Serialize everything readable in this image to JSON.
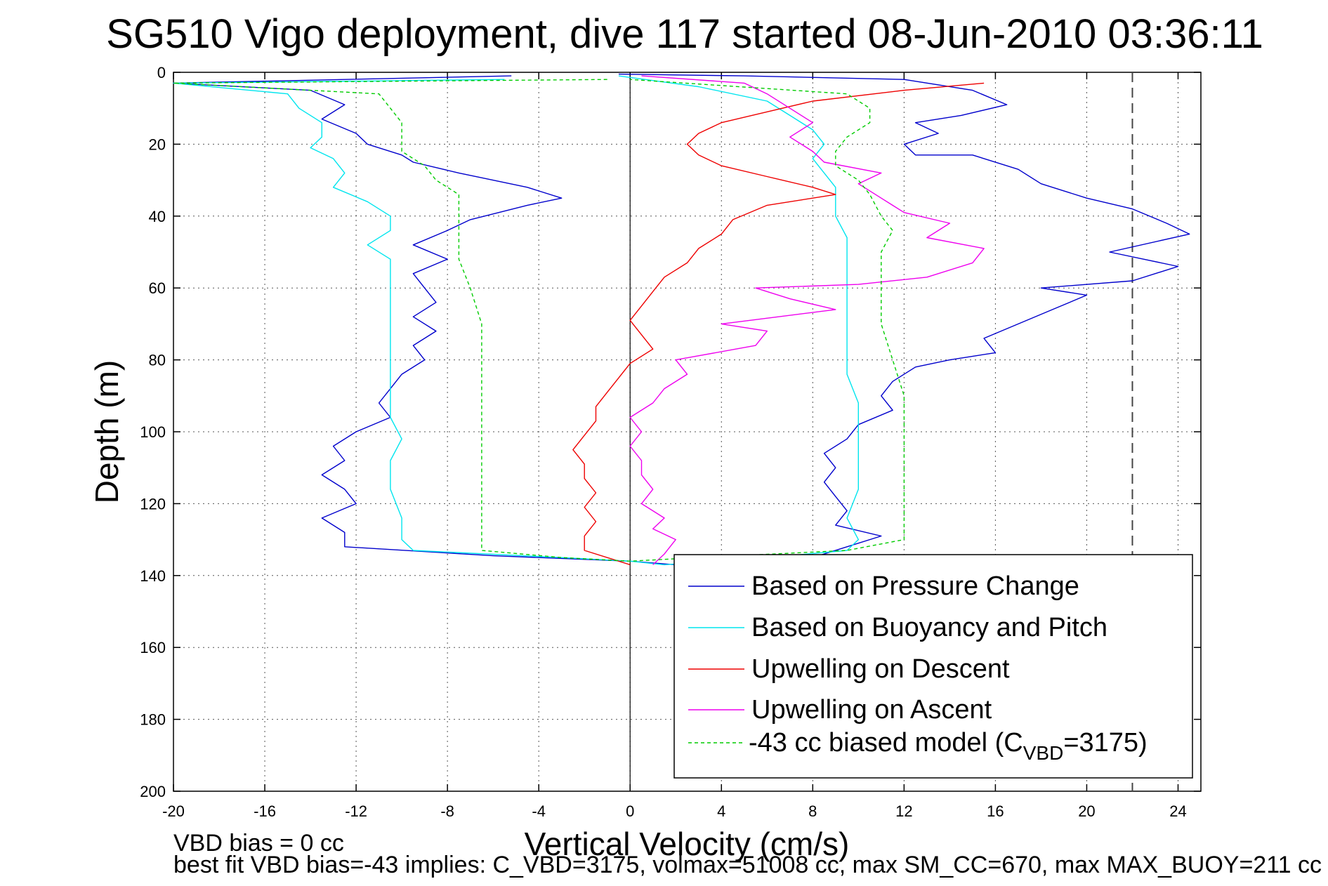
{
  "chart_data": {
    "type": "line",
    "title": "SG510 Vigo deployment, dive 117 started 08-Jun-2010 03:36:11",
    "xlabel": "Vertical Velocity (cm/s)",
    "ylabel": "Depth (m)",
    "xlim": [
      -20,
      25
    ],
    "ylim": [
      0,
      200
    ],
    "y_reversed": true,
    "grid": true,
    "legend_position": "bottom-right",
    "x_ticks": [
      "-20",
      "-16",
      "-12",
      "-8",
      "-4",
      "0",
      "4",
      "8",
      "12",
      "16",
      "20",
      "24"
    ],
    "y_ticks": [
      "0",
      "20",
      "40",
      "60",
      "80",
      "100",
      "120",
      "140",
      "160",
      "180",
      "200"
    ],
    "reference_line_x": 22,
    "series": [
      {
        "name": "Based on Pressure Change",
        "color": "#0000cc",
        "dash": "solid",
        "points": [
          [
            -5.2,
            1
          ],
          [
            -20,
            3
          ],
          [
            -14,
            5
          ],
          [
            -12.5,
            9
          ],
          [
            -13.5,
            13
          ],
          [
            -12,
            17
          ],
          [
            -11.5,
            20
          ],
          [
            -10,
            23
          ],
          [
            -9.5,
            25
          ],
          [
            -7.5,
            28
          ],
          [
            -4.5,
            32
          ],
          [
            -3,
            35
          ],
          [
            -4.5,
            37
          ],
          [
            -7,
            41
          ],
          [
            -8,
            44
          ],
          [
            -9.5,
            48
          ],
          [
            -8,
            52
          ],
          [
            -9.5,
            56
          ],
          [
            -9,
            60
          ],
          [
            -8.5,
            64
          ],
          [
            -9.5,
            68
          ],
          [
            -8.5,
            72
          ],
          [
            -9.5,
            76
          ],
          [
            -9,
            80
          ],
          [
            -10,
            84
          ],
          [
            -10.5,
            88
          ],
          [
            -11,
            92
          ],
          [
            -10.5,
            96
          ],
          [
            -12,
            100
          ],
          [
            -13,
            104
          ],
          [
            -12.5,
            108
          ],
          [
            -13.5,
            112
          ],
          [
            -12.5,
            116
          ],
          [
            -12,
            120
          ],
          [
            -13.5,
            124
          ],
          [
            -12.5,
            128
          ],
          [
            -12.5,
            132
          ],
          [
            -6,
            134.5
          ],
          [
            0,
            136
          ],
          [
            2,
            137
          ],
          [
            8,
            135
          ],
          [
            9.5,
            132
          ],
          [
            11,
            129
          ],
          [
            9,
            126
          ],
          [
            9.5,
            122
          ],
          [
            9,
            118
          ],
          [
            8.5,
            114
          ],
          [
            9,
            110
          ],
          [
            8.5,
            106
          ],
          [
            9.5,
            102
          ],
          [
            10,
            98
          ],
          [
            11.5,
            94
          ],
          [
            11,
            90
          ],
          [
            11.5,
            86
          ],
          [
            12.5,
            82
          ],
          [
            14,
            80
          ],
          [
            16,
            78
          ],
          [
            15.5,
            74
          ],
          [
            17,
            70
          ],
          [
            18.5,
            66
          ],
          [
            20,
            62
          ],
          [
            18,
            60
          ],
          [
            22,
            58
          ],
          [
            24,
            54
          ],
          [
            21,
            50
          ],
          [
            24.5,
            45
          ],
          [
            23.5,
            42
          ],
          [
            22,
            38
          ],
          [
            20,
            35
          ],
          [
            18,
            31
          ],
          [
            17,
            27
          ],
          [
            15,
            23
          ],
          [
            12.5,
            23
          ],
          [
            12,
            20
          ],
          [
            13.5,
            17
          ],
          [
            12.5,
            14
          ],
          [
            14.5,
            12
          ],
          [
            16.5,
            9
          ],
          [
            15,
            5
          ],
          [
            12,
            2
          ],
          [
            5,
            1
          ],
          [
            -0.5,
            0.5
          ]
        ]
      },
      {
        "name": "Based on Buoyancy and Pitch",
        "color": "#00e5ee",
        "dash": "solid",
        "points": [
          [
            -5.5,
            2
          ],
          [
            -20,
            3
          ],
          [
            -15,
            6
          ],
          [
            -14.5,
            10
          ],
          [
            -13.5,
            14
          ],
          [
            -13.5,
            18
          ],
          [
            -14,
            21
          ],
          [
            -13,
            24
          ],
          [
            -12.5,
            28
          ],
          [
            -13,
            32
          ],
          [
            -11.5,
            36
          ],
          [
            -10.5,
            40
          ],
          [
            -10.5,
            44
          ],
          [
            -11.5,
            48
          ],
          [
            -10.5,
            52
          ],
          [
            -10.5,
            56
          ],
          [
            -10.5,
            60
          ],
          [
            -10.5,
            66
          ],
          [
            -10.5,
            72
          ],
          [
            -10.5,
            78
          ],
          [
            -10.5,
            84
          ],
          [
            -10.5,
            90
          ],
          [
            -10.5,
            96
          ],
          [
            -10,
            102
          ],
          [
            -10.5,
            108
          ],
          [
            -10.5,
            116
          ],
          [
            -10,
            124
          ],
          [
            -10,
            130
          ],
          [
            -9.5,
            133
          ],
          [
            -3,
            135
          ],
          [
            0,
            136
          ],
          [
            1.5,
            137
          ],
          [
            6,
            135
          ],
          [
            9.5,
            133
          ],
          [
            10,
            130
          ],
          [
            9.5,
            124
          ],
          [
            10,
            116
          ],
          [
            10,
            108
          ],
          [
            10,
            100
          ],
          [
            10,
            92
          ],
          [
            9.5,
            84
          ],
          [
            9.5,
            76
          ],
          [
            9.5,
            68
          ],
          [
            9.5,
            60
          ],
          [
            9.5,
            52
          ],
          [
            9.5,
            46
          ],
          [
            9,
            40
          ],
          [
            9,
            36
          ],
          [
            9,
            32
          ],
          [
            8.5,
            28
          ],
          [
            8,
            24
          ],
          [
            8.5,
            20
          ],
          [
            8,
            16
          ],
          [
            7,
            12
          ],
          [
            6,
            8
          ],
          [
            3,
            4
          ],
          [
            -0.5,
            1
          ]
        ]
      },
      {
        "name": "Upwelling on Descent",
        "color": "#ee0000",
        "dash": "solid",
        "points": [
          [
            15.5,
            3
          ],
          [
            12,
            5
          ],
          [
            8,
            8
          ],
          [
            6,
            11
          ],
          [
            4,
            14
          ],
          [
            3,
            17
          ],
          [
            2.5,
            20
          ],
          [
            3,
            23
          ],
          [
            4,
            26
          ],
          [
            6,
            29
          ],
          [
            8,
            32
          ],
          [
            9,
            34
          ],
          [
            6,
            37
          ],
          [
            4.5,
            41
          ],
          [
            4,
            45
          ],
          [
            3,
            49
          ],
          [
            2.5,
            53
          ],
          [
            1.5,
            57
          ],
          [
            1,
            61
          ],
          [
            0.5,
            65
          ],
          [
            0,
            69
          ],
          [
            0.5,
            73
          ],
          [
            1,
            77
          ],
          [
            0,
            81
          ],
          [
            -0.5,
            85
          ],
          [
            -1,
            89
          ],
          [
            -1.5,
            93
          ],
          [
            -1.5,
            97
          ],
          [
            -2,
            101
          ],
          [
            -2.5,
            105
          ],
          [
            -2,
            109
          ],
          [
            -2,
            113
          ],
          [
            -1.5,
            117
          ],
          [
            -2,
            121
          ],
          [
            -1.5,
            125
          ],
          [
            -2,
            129
          ],
          [
            -2,
            133
          ],
          [
            -0.5,
            136
          ],
          [
            0,
            137
          ]
        ]
      },
      {
        "name": "Upwelling on Ascent",
        "color": "#ee00ee",
        "dash": "solid",
        "points": [
          [
            1,
            137
          ],
          [
            1.5,
            134
          ],
          [
            2,
            130
          ],
          [
            1,
            127
          ],
          [
            1.5,
            124
          ],
          [
            0.5,
            120
          ],
          [
            1,
            116
          ],
          [
            0.5,
            112
          ],
          [
            0.5,
            108
          ],
          [
            0,
            104
          ],
          [
            0.5,
            100
          ],
          [
            0,
            96
          ],
          [
            1,
            92
          ],
          [
            1.5,
            88
          ],
          [
            2.5,
            84
          ],
          [
            2,
            80
          ],
          [
            5.5,
            76
          ],
          [
            6,
            72
          ],
          [
            4,
            70
          ],
          [
            6.5,
            68
          ],
          [
            9,
            66
          ],
          [
            7,
            63
          ],
          [
            5.5,
            60
          ],
          [
            10,
            59
          ],
          [
            13,
            57
          ],
          [
            15,
            53
          ],
          [
            15.5,
            49
          ],
          [
            13,
            46
          ],
          [
            14,
            42
          ],
          [
            12,
            39
          ],
          [
            11,
            35
          ],
          [
            10,
            31
          ],
          [
            11,
            28
          ],
          [
            8.5,
            25
          ],
          [
            8,
            22
          ],
          [
            7,
            18
          ],
          [
            8,
            14
          ],
          [
            7,
            10
          ],
          [
            6,
            6
          ],
          [
            5,
            3
          ],
          [
            0.5,
            1
          ]
        ]
      },
      {
        "name": "-43 cc biased model (C_VBD=3175)",
        "color": "#00cc00",
        "dash": "dashed",
        "points": [
          [
            -1,
            2
          ],
          [
            -20,
            3
          ],
          [
            -11,
            6
          ],
          [
            -10.5,
            10
          ],
          [
            -10,
            14
          ],
          [
            -10,
            18
          ],
          [
            -10,
            22
          ],
          [
            -9,
            26
          ],
          [
            -8.5,
            30
          ],
          [
            -7.5,
            34
          ],
          [
            -7.5,
            38
          ],
          [
            -7.5,
            44
          ],
          [
            -7.5,
            52
          ],
          [
            -7,
            60
          ],
          [
            -6.5,
            70
          ],
          [
            -6.5,
            80
          ],
          [
            -6.5,
            90
          ],
          [
            -6.5,
            100
          ],
          [
            -6.5,
            110
          ],
          [
            -6.5,
            120
          ],
          [
            -6.5,
            130
          ],
          [
            -6.5,
            133
          ],
          [
            -3,
            135
          ],
          [
            0,
            136
          ],
          [
            3,
            135
          ],
          [
            9.5,
            133
          ],
          [
            12,
            130
          ],
          [
            12,
            120
          ],
          [
            12,
            110
          ],
          [
            12,
            100
          ],
          [
            12,
            90
          ],
          [
            11.5,
            80
          ],
          [
            11,
            70
          ],
          [
            11,
            60
          ],
          [
            11,
            50
          ],
          [
            11.5,
            44
          ],
          [
            11,
            40
          ],
          [
            10.5,
            34
          ],
          [
            10,
            30
          ],
          [
            9,
            26
          ],
          [
            9,
            22
          ],
          [
            9.5,
            18
          ],
          [
            10.5,
            14
          ],
          [
            10.5,
            10
          ],
          [
            9.5,
            6
          ],
          [
            0,
            2
          ]
        ]
      }
    ],
    "legend_subscript_label": "-43 cc biased model (C",
    "legend_subscript": "VBD",
    "legend_subscript_suffix": "=3175)"
  },
  "footer": {
    "line1": "VBD bias = 0 cc",
    "line2": "best fit VBD bias=-43 implies: C_VBD=3175, volmax=51008 cc, max SM_CC=670, max MAX_BUOY=211 cc"
  }
}
